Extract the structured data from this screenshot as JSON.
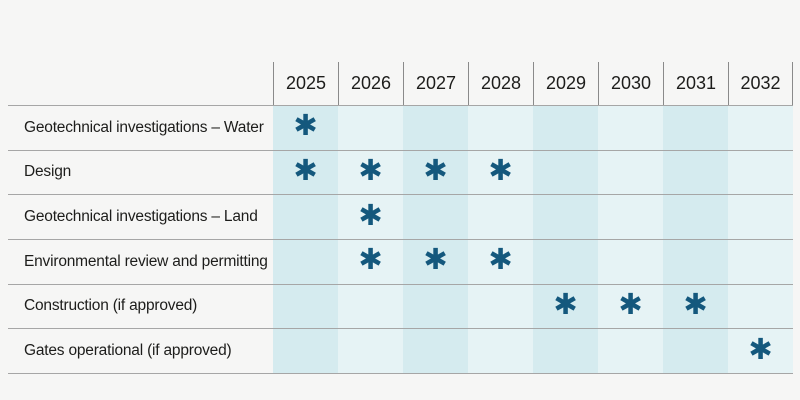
{
  "colors": {
    "bg": "#f6f6f5",
    "col_tint_a": "#d5ebef",
    "col_tint_b": "#e6f3f5",
    "marker": "#14587d",
    "row_line": "#a6a6a6",
    "header_line": "#8a8a8a",
    "text": "#1d1d1b"
  },
  "chart_data": {
    "type": "table",
    "title": "",
    "description": "Project schedule timeline grid; heavy asterisk marks active years per phase",
    "marker_glyph": "✱",
    "legend_position": "none",
    "grid": "horizontal row lines; vertical dividers in year header; alternating column tints",
    "years": [
      "2025",
      "2026",
      "2027",
      "2028",
      "2029",
      "2030",
      "2031",
      "2032"
    ],
    "rows": [
      {
        "label": "Geotechnical investigations – Water",
        "active_years": [
          "2025"
        ]
      },
      {
        "label": "Design",
        "active_years": [
          "2025",
          "2026",
          "2027",
          "2028"
        ]
      },
      {
        "label": "Geotechnical investigations – Land",
        "active_years": [
          "2026"
        ]
      },
      {
        "label": "Environmental review and permitting",
        "active_years": [
          "2026",
          "2027",
          "2028"
        ]
      },
      {
        "label": "Construction (if approved)",
        "active_years": [
          "2029",
          "2030",
          "2031"
        ]
      },
      {
        "label": "Gates operational (if approved)",
        "active_years": [
          "2032"
        ]
      }
    ]
  }
}
